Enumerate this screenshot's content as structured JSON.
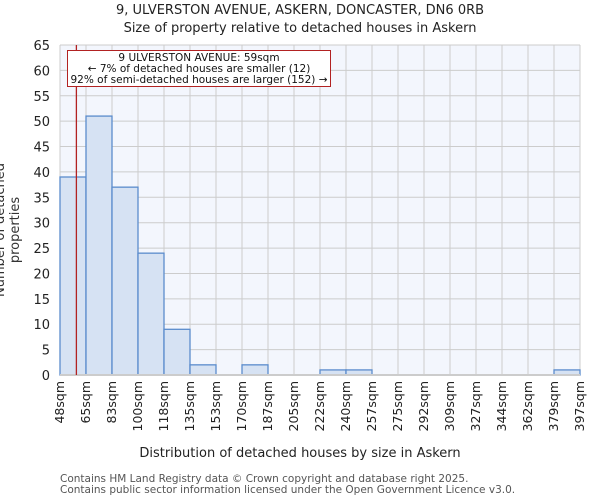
{
  "header": {
    "title": "9, ULVERSTON AVENUE, ASKERN, DONCASTER, DN6 0RB",
    "subtitle": "Size of property relative to detached houses in Askern"
  },
  "annotation": {
    "line1": "9 ULVERSTON AVENUE: 59sqm",
    "line2": "← 7% of detached houses are smaller (12)",
    "line3": "92% of semi-detached houses are larger (152) →"
  },
  "footer": {
    "line1": "Contains HM Land Registry data © Crown copyright and database right 2025.",
    "line2": "Contains public sector information licensed under the Open Government Licence v3.0."
  },
  "colors": {
    "bar_fill": "#d6e2f3",
    "bar_edge": "#5b8ccc",
    "plot_bg": "#f3f6fd",
    "grid": "#cccccc",
    "marker": "#b22222"
  },
  "chart_data": {
    "type": "bar",
    "title": "9, ULVERSTON AVENUE, ASKERN, DONCASTER, DN6 0RB",
    "subtitle": "Size of property relative to detached houses in Askern",
    "xlabel": "Distribution of detached houses by size in Askern",
    "ylabel": "Number of detached properties",
    "categories": [
      "48sqm",
      "65sqm",
      "83sqm",
      "100sqm",
      "118sqm",
      "135sqm",
      "153sqm",
      "170sqm",
      "187sqm",
      "205sqm",
      "222sqm",
      "240sqm",
      "257sqm",
      "275sqm",
      "292sqm",
      "309sqm",
      "327sqm",
      "344sqm",
      "362sqm",
      "379sqm",
      "397sqm"
    ],
    "values": [
      39,
      51,
      37,
      24,
      9,
      2,
      0,
      2,
      0,
      0,
      1,
      1,
      0,
      0,
      0,
      0,
      0,
      0,
      0,
      1
    ],
    "ylim": [
      0,
      65
    ],
    "yticks": [
      0,
      5,
      10,
      15,
      20,
      25,
      30,
      35,
      40,
      45,
      50,
      55,
      60,
      65
    ],
    "grid": true,
    "marker": {
      "value": 59,
      "label": "9 ULVERSTON AVENUE: 59sqm"
    }
  }
}
